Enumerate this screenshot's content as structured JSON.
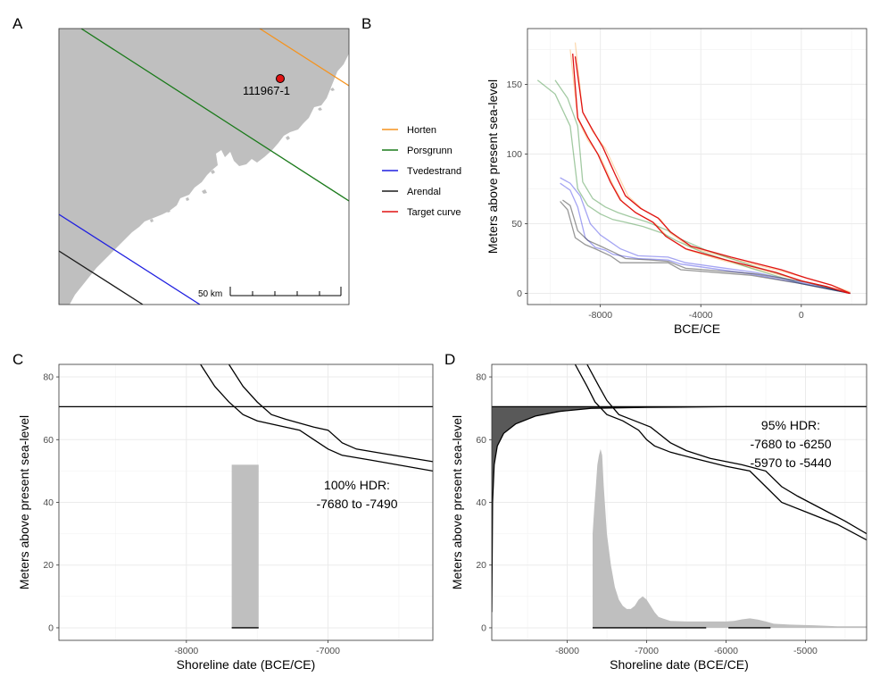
{
  "panels": {
    "A": {
      "letter": "A",
      "site_label": "111967-1",
      "scale_label": "50 km",
      "land_color": "#bfbfbf",
      "sea_color": "#ffffff"
    },
    "legend": {
      "items": [
        {
          "name": "Horten",
          "color": "#f5931e"
        },
        {
          "name": "Porsgrunn",
          "color": "#1a7a1a"
        },
        {
          "name": "Tvedestrand",
          "color": "#1f1fe0"
        },
        {
          "name": "Arendal",
          "color": "#1a1a1a"
        },
        {
          "name": "Target curve",
          "color": "#e01212"
        }
      ]
    }
  },
  "chart_data": [
    {
      "id": "B",
      "letter": "B",
      "type": "line",
      "xlabel": "BCE/CE",
      "ylabel": "Meters above present sea-level",
      "xlim": [
        -10900,
        2600
      ],
      "ylim": [
        -8,
        190
      ],
      "xticks": [
        -8000,
        -4000,
        0
      ],
      "xtick_labels": [
        "-8000",
        "-4000",
        "0"
      ],
      "yticks": [
        0,
        50,
        100,
        150
      ],
      "ytick_labels": [
        "0",
        "50",
        "100",
        "150"
      ],
      "grid": true,
      "series": [
        {
          "name": "Horten",
          "color": "#f5931e",
          "opacity": 0.35,
          "lower": [
            [
              -9200,
              175
            ],
            [
              -8900,
              125
            ],
            [
              -8500,
              110
            ],
            [
              -8000,
              98
            ],
            [
              -7500,
              78
            ],
            [
              -7100,
              65
            ],
            [
              -6500,
              57
            ],
            [
              -5800,
              50
            ],
            [
              -5300,
              40
            ],
            [
              -4500,
              31
            ],
            [
              -3000,
              23
            ],
            [
              -1000,
              14
            ],
            [
              0,
              9
            ],
            [
              1000,
              5
            ],
            [
              1900,
              1
            ]
          ],
          "upper": [
            [
              -9000,
              180
            ],
            [
              -8700,
              130
            ],
            [
              -8300,
              116
            ],
            [
              -7800,
              104
            ],
            [
              -7300,
              85
            ],
            [
              -6900,
              70
            ],
            [
              -6300,
              60
            ],
            [
              -5600,
              53
            ],
            [
              -5200,
              43
            ],
            [
              -4400,
              33
            ],
            [
              -2800,
              25
            ],
            [
              -800,
              16
            ],
            [
              200,
              11
            ],
            [
              1200,
              6
            ],
            [
              1950,
              1
            ]
          ]
        },
        {
          "name": "Porsgrunn",
          "color": "#1a7a1a",
          "opacity": 0.4,
          "lower": [
            [
              -10500,
              153
            ],
            [
              -9800,
              143
            ],
            [
              -9200,
              120
            ],
            [
              -8900,
              75
            ],
            [
              -8500,
              63
            ],
            [
              -8000,
              57
            ],
            [
              -7500,
              53
            ],
            [
              -7000,
              51
            ],
            [
              -6300,
              48
            ],
            [
              -5500,
              43
            ],
            [
              -5000,
              38
            ],
            [
              -4000,
              30
            ],
            [
              -2000,
              18
            ],
            [
              0,
              7
            ],
            [
              1950,
              0
            ]
          ],
          "upper": [
            [
              -9800,
              153
            ],
            [
              -9300,
              140
            ],
            [
              -8900,
              120
            ],
            [
              -8700,
              80
            ],
            [
              -8300,
              68
            ],
            [
              -7800,
              62
            ],
            [
              -7300,
              58
            ],
            [
              -6800,
              55
            ],
            [
              -6100,
              51
            ],
            [
              -5300,
              45
            ],
            [
              -4800,
              39
            ],
            [
              -3800,
              31
            ],
            [
              -1800,
              19
            ],
            [
              200,
              8
            ],
            [
              1950,
              0
            ]
          ]
        },
        {
          "name": "Tvedestrand",
          "color": "#1f1fe0",
          "opacity": 0.4,
          "lower": [
            [
              -9600,
              79
            ],
            [
              -9200,
              74
            ],
            [
              -8900,
              62
            ],
            [
              -8600,
              40
            ],
            [
              -8200,
              33
            ],
            [
              -7800,
              31
            ],
            [
              -7500,
              28
            ],
            [
              -6500,
              25
            ],
            [
              -5300,
              24
            ],
            [
              -4800,
              21
            ],
            [
              -2000,
              14
            ],
            [
              0,
              7
            ],
            [
              1950,
              0
            ]
          ],
          "upper": [
            [
              -9600,
              83
            ],
            [
              -9200,
              79
            ],
            [
              -8800,
              70
            ],
            [
              -8400,
              50
            ],
            [
              -8000,
              42
            ],
            [
              -7600,
              37
            ],
            [
              -7200,
              32
            ],
            [
              -6500,
              27
            ],
            [
              -5300,
              26
            ],
            [
              -4600,
              22
            ],
            [
              -1800,
              15
            ],
            [
              200,
              7
            ],
            [
              1950,
              0
            ]
          ]
        },
        {
          "name": "Arendal",
          "color": "#1a1a1a",
          "opacity": 0.45,
          "lower": [
            [
              -9600,
              66
            ],
            [
              -9300,
              60
            ],
            [
              -9000,
              40
            ],
            [
              -8600,
              35
            ],
            [
              -8200,
              32
            ],
            [
              -7600,
              27
            ],
            [
              -7200,
              22
            ],
            [
              -6000,
              22
            ],
            [
              -5300,
              22
            ],
            [
              -4800,
              17
            ],
            [
              -2000,
              13
            ],
            [
              0,
              7
            ],
            [
              1950,
              0
            ]
          ],
          "upper": [
            [
              -9500,
              67
            ],
            [
              -9200,
              63
            ],
            [
              -8900,
              45
            ],
            [
              -8500,
              38
            ],
            [
              -8000,
              34
            ],
            [
              -7400,
              29
            ],
            [
              -7000,
              25
            ],
            [
              -6000,
              24
            ],
            [
              -5300,
              23
            ],
            [
              -4600,
              18
            ],
            [
              -1800,
              14
            ],
            [
              200,
              8
            ],
            [
              1950,
              0
            ]
          ]
        },
        {
          "name": "Target curve",
          "color": "#e01212",
          "opacity": 1,
          "lower": [
            [
              -9100,
              172
            ],
            [
              -8900,
              126
            ],
            [
              -8500,
              112
            ],
            [
              -8100,
              100
            ],
            [
              -7600,
              80
            ],
            [
              -7200,
              67
            ],
            [
              -6600,
              58
            ],
            [
              -5900,
              51
            ],
            [
              -5400,
              41
            ],
            [
              -4600,
              32
            ],
            [
              -3000,
              24
            ],
            [
              -1000,
              15
            ],
            [
              0,
              9
            ],
            [
              1000,
              5
            ],
            [
              1900,
              0
            ]
          ],
          "upper": [
            [
              -9000,
              170
            ],
            [
              -8700,
              130
            ],
            [
              -8300,
              117
            ],
            [
              -7900,
              105
            ],
            [
              -7400,
              85
            ],
            [
              -7000,
              70
            ],
            [
              -6400,
              61
            ],
            [
              -5700,
              54
            ],
            [
              -5200,
              44
            ],
            [
              -4400,
              34
            ],
            [
              -2800,
              26
            ],
            [
              -800,
              17
            ],
            [
              200,
              11
            ],
            [
              1200,
              6
            ],
            [
              1950,
              0
            ]
          ]
        }
      ]
    },
    {
      "id": "C",
      "letter": "C",
      "type": "line",
      "xlabel": "Shoreline date (BCE/CE)",
      "ylabel": "Meters above present sea-level",
      "xlim": [
        -8900,
        -6260
      ],
      "ylim": [
        -4,
        84
      ],
      "xticks": [
        -8000,
        -7000
      ],
      "xtick_labels": [
        "-8000",
        "-7000"
      ],
      "yticks": [
        0,
        20,
        40,
        60,
        80
      ],
      "ytick_labels": [
        "0",
        "20",
        "40",
        "60",
        "80"
      ],
      "grid": true,
      "site_elevation": 70.5,
      "curve_lower": [
        [
          -7900,
          84
        ],
        [
          -7800,
          77
        ],
        [
          -7700,
          72
        ],
        [
          -7600,
          68
        ],
        [
          -7500,
          66
        ],
        [
          -7300,
          64
        ],
        [
          -7200,
          63
        ],
        [
          -7100,
          60
        ],
        [
          -7000,
          57
        ],
        [
          -6900,
          55
        ],
        [
          -6700,
          53.5
        ],
        [
          -6260,
          50
        ]
      ],
      "curve_upper": [
        [
          -7700,
          84
        ],
        [
          -7600,
          77
        ],
        [
          -7500,
          72
        ],
        [
          -7400,
          68
        ],
        [
          -7300,
          66.5
        ],
        [
          -7100,
          64
        ],
        [
          -7000,
          63
        ],
        [
          -6900,
          59
        ],
        [
          -6800,
          57
        ],
        [
          -6600,
          55.5
        ],
        [
          -6260,
          53
        ]
      ],
      "density_bar": {
        "x0": -7680,
        "x1": -7490,
        "height": 52
      },
      "hdr_segments": [
        [
          -7680,
          -7490
        ]
      ],
      "annotation_lines": [
        "100% HDR:",
        "-7680 to -7490"
      ]
    },
    {
      "id": "D",
      "letter": "D",
      "type": "line",
      "xlabel": "Shoreline date (BCE/CE)",
      "ylabel": "Meters above present sea-level",
      "xlim": [
        -8950,
        -4230
      ],
      "ylim": [
        -4,
        84
      ],
      "xticks": [
        -8000,
        -7000,
        -6000,
        -5000
      ],
      "xtick_labels": [
        "-8000",
        "-7000",
        "-6000",
        "-5000"
      ],
      "yticks": [
        0,
        20,
        40,
        60,
        80
      ],
      "ytick_labels": [
        "0",
        "20",
        "40",
        "60",
        "80"
      ],
      "grid": true,
      "site_elevation": 70.5,
      "curve_lower": [
        [
          -7900,
          84
        ],
        [
          -7750,
          77
        ],
        [
          -7650,
          72
        ],
        [
          -7500,
          68
        ],
        [
          -7300,
          66
        ],
        [
          -7100,
          63
        ],
        [
          -7000,
          60
        ],
        [
          -6900,
          58
        ],
        [
          -6700,
          56
        ],
        [
          -6400,
          54
        ],
        [
          -6000,
          51.5
        ],
        [
          -5700,
          50
        ],
        [
          -5500,
          45
        ],
        [
          -5300,
          40
        ],
        [
          -5000,
          37
        ],
        [
          -4600,
          33
        ],
        [
          -4230,
          28
        ]
      ],
      "curve_upper": [
        [
          -7750,
          84
        ],
        [
          -7600,
          77
        ],
        [
          -7500,
          72.5
        ],
        [
          -7350,
          68
        ],
        [
          -7150,
          66
        ],
        [
          -6950,
          64
        ],
        [
          -6850,
          62
        ],
        [
          -6700,
          59
        ],
        [
          -6500,
          56.5
        ],
        [
          -6200,
          54
        ],
        [
          -5800,
          52
        ],
        [
          -5500,
          50
        ],
        [
          -5300,
          45
        ],
        [
          -5100,
          42
        ],
        [
          -4800,
          38
        ],
        [
          -4500,
          34
        ],
        [
          -4230,
          30
        ]
      ],
      "gamma_curve": [
        [
          -8950,
          5
        ],
        [
          -8940,
          40
        ],
        [
          -8920,
          52
        ],
        [
          -8880,
          58
        ],
        [
          -8800,
          62
        ],
        [
          -8650,
          65
        ],
        [
          -8400,
          67.5
        ],
        [
          -8100,
          69
        ],
        [
          -7700,
          70
        ],
        [
          -7000,
          70.3
        ],
        [
          -6000,
          70.5
        ],
        [
          -4230,
          70.5
        ]
      ],
      "density": [
        [
          -7680,
          0
        ],
        [
          -7680,
          30
        ],
        [
          -7660,
          38
        ],
        [
          -7640,
          45
        ],
        [
          -7620,
          52
        ],
        [
          -7600,
          55
        ],
        [
          -7580,
          57
        ],
        [
          -7560,
          55
        ],
        [
          -7540,
          45
        ],
        [
          -7500,
          30
        ],
        [
          -7450,
          20
        ],
        [
          -7400,
          13
        ],
        [
          -7350,
          9
        ],
        [
          -7300,
          7
        ],
        [
          -7250,
          6
        ],
        [
          -7200,
          6
        ],
        [
          -7150,
          7
        ],
        [
          -7100,
          9
        ],
        [
          -7050,
          10
        ],
        [
          -7000,
          9
        ],
        [
          -6950,
          7
        ],
        [
          -6900,
          5
        ],
        [
          -6850,
          3.5
        ],
        [
          -6800,
          3
        ],
        [
          -6700,
          2.2
        ],
        [
          -6500,
          2
        ],
        [
          -6300,
          2
        ],
        [
          -6000,
          2
        ],
        [
          -5900,
          2.2
        ],
        [
          -5800,
          2.7
        ],
        [
          -5700,
          3
        ],
        [
          -5600,
          2.6
        ],
        [
          -5500,
          2
        ],
        [
          -5400,
          1.3
        ],
        [
          -5200,
          1
        ],
        [
          -4900,
          0.8
        ],
        [
          -4600,
          0.5
        ],
        [
          -4230,
          0.5
        ],
        [
          -4230,
          0
        ]
      ],
      "hdr_segments": [
        [
          -7680,
          -6250
        ],
        [
          -5970,
          -5440
        ]
      ],
      "annotation_lines": [
        "95% HDR:",
        "-7680 to -6250",
        "-5970 to -5440"
      ]
    }
  ]
}
